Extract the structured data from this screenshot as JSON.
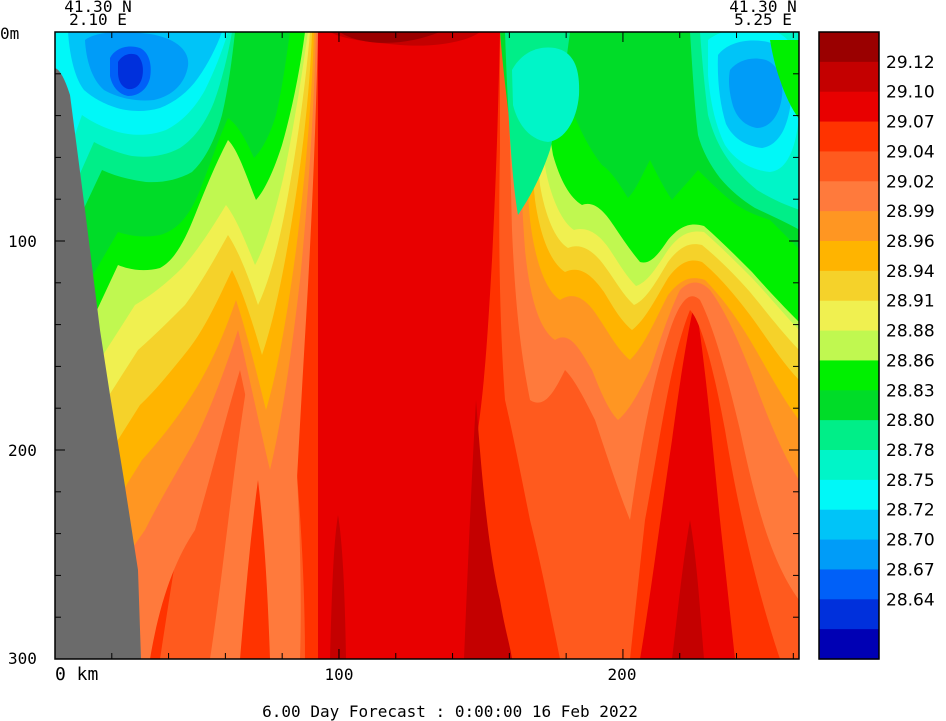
{
  "chart_data": {
    "type": "contour-section",
    "top_left": {
      "lat": "41.30 N",
      "lon": "2.10 E"
    },
    "top_right": {
      "lat": "41.30 N",
      "lon": "5.25 E"
    },
    "y_ticks": [
      {
        "value": 0,
        "label": "0m"
      },
      {
        "value": 100,
        "label": "100"
      },
      {
        "value": 200,
        "label": "200"
      },
      {
        "value": 300,
        "label": "300"
      }
    ],
    "x_ticks": [
      {
        "value": 0,
        "label": "0 km"
      },
      {
        "value": 100,
        "label": "100"
      },
      {
        "value": 200,
        "label": "200"
      }
    ],
    "x_range": [
      0,
      262
    ],
    "y_range": [
      0,
      300
    ],
    "footer": "6.00 Day Forecast :  0:00:00  16 Feb 2022",
    "levels": [
      {
        "label": "",
        "color": "#9a0000"
      },
      {
        "label": "29.12",
        "color": "#c40000"
      },
      {
        "label": "29.10",
        "color": "#e80000"
      },
      {
        "label": "29.07",
        "color": "#ff3300"
      },
      {
        "label": "29.04",
        "color": "#ff5a1e"
      },
      {
        "label": "29.02",
        "color": "#ff7a3c"
      },
      {
        "label": "28.99",
        "color": "#ff9622"
      },
      {
        "label": "28.96",
        "color": "#ffb400"
      },
      {
        "label": "28.94",
        "color": "#f5d22a"
      },
      {
        "label": "28.91",
        "color": "#f0f050"
      },
      {
        "label": "28.88",
        "color": "#c0f850"
      },
      {
        "label": "28.86",
        "color": "#00f000"
      },
      {
        "label": "28.83",
        "color": "#00dc28"
      },
      {
        "label": "28.80",
        "color": "#00ee88"
      },
      {
        "label": "28.78",
        "color": "#00f5c8"
      },
      {
        "label": "28.75",
        "color": "#00f8f8"
      },
      {
        "label": "28.72",
        "color": "#00c4f8"
      },
      {
        "label": "28.70",
        "color": "#009cf8"
      },
      {
        "label": "28.67",
        "color": "#0060f8"
      },
      {
        "label": "28.64",
        "color": "#0030dc"
      },
      {
        "label": "",
        "color": "#0000b4"
      }
    ],
    "land_color": "#6b6b6b"
  }
}
